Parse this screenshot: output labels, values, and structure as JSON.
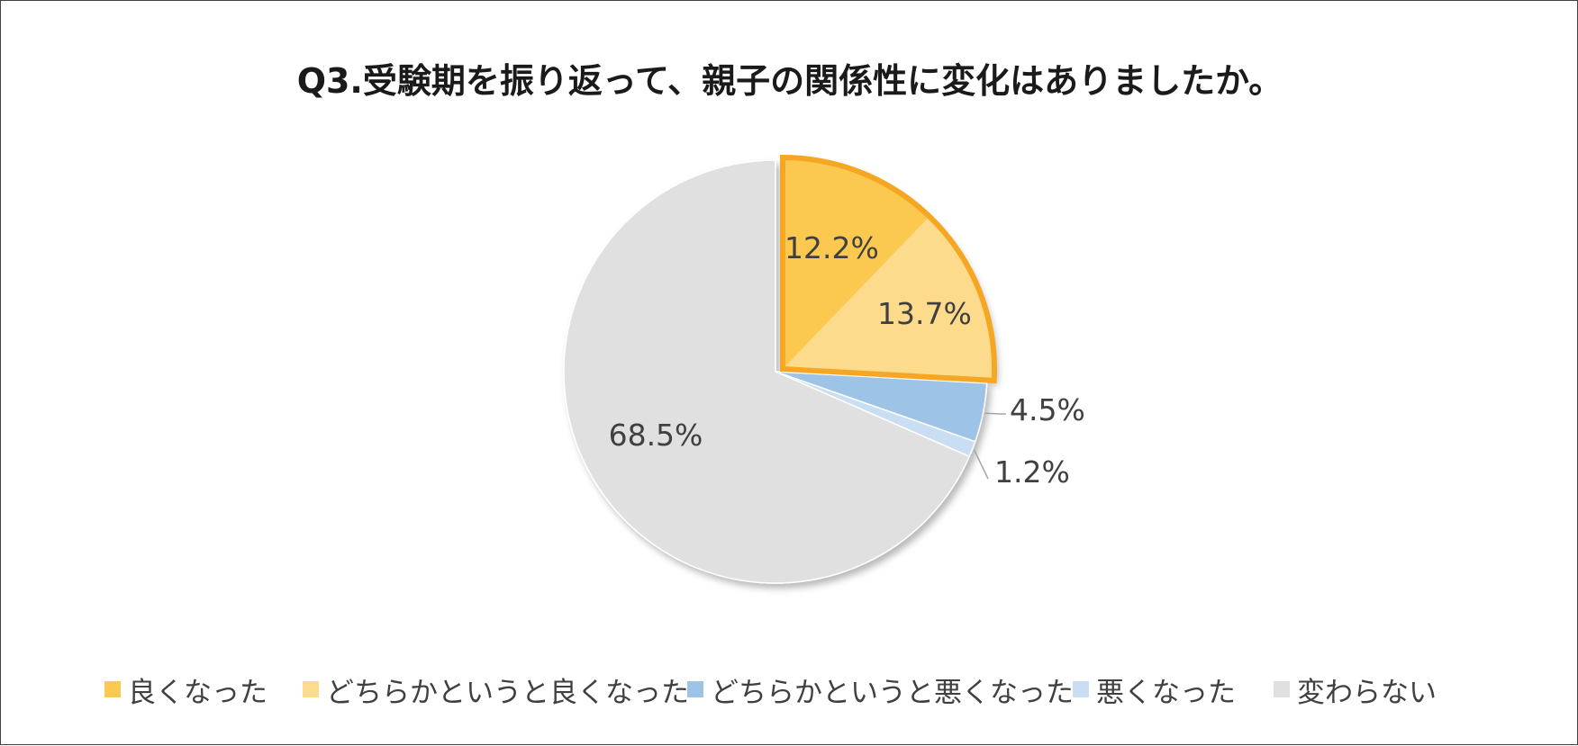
{
  "colors": {
    "good": "#FBC94F",
    "somewhat_good": "#FDDB8C",
    "somewhat_bad": "#9DC3E6",
    "bad": "#C9DEF2",
    "unchanged": "#E0E0E0",
    "highlight": "#F5A623",
    "text": "#404040"
  },
  "chart_data": {
    "type": "pie",
    "title": "Q3.受験期を振り返って、親子の関係性に変化はありましたか。",
    "categories": [
      "良くなった",
      "どちらかというと良くなった",
      "どちらかというと悪くなった",
      "悪くなった",
      "変わらない"
    ],
    "values": [
      12.2,
      13.7,
      4.5,
      1.2,
      68.5
    ],
    "labels": [
      "12.2%",
      "13.7%",
      "4.5%",
      "1.2%",
      "68.5%"
    ],
    "start_angle": "12 o'clock, clockwise",
    "highlighted_group": [
      "良くなった",
      "どちらかというと良くなった"
    ],
    "legend_position": "bottom"
  }
}
